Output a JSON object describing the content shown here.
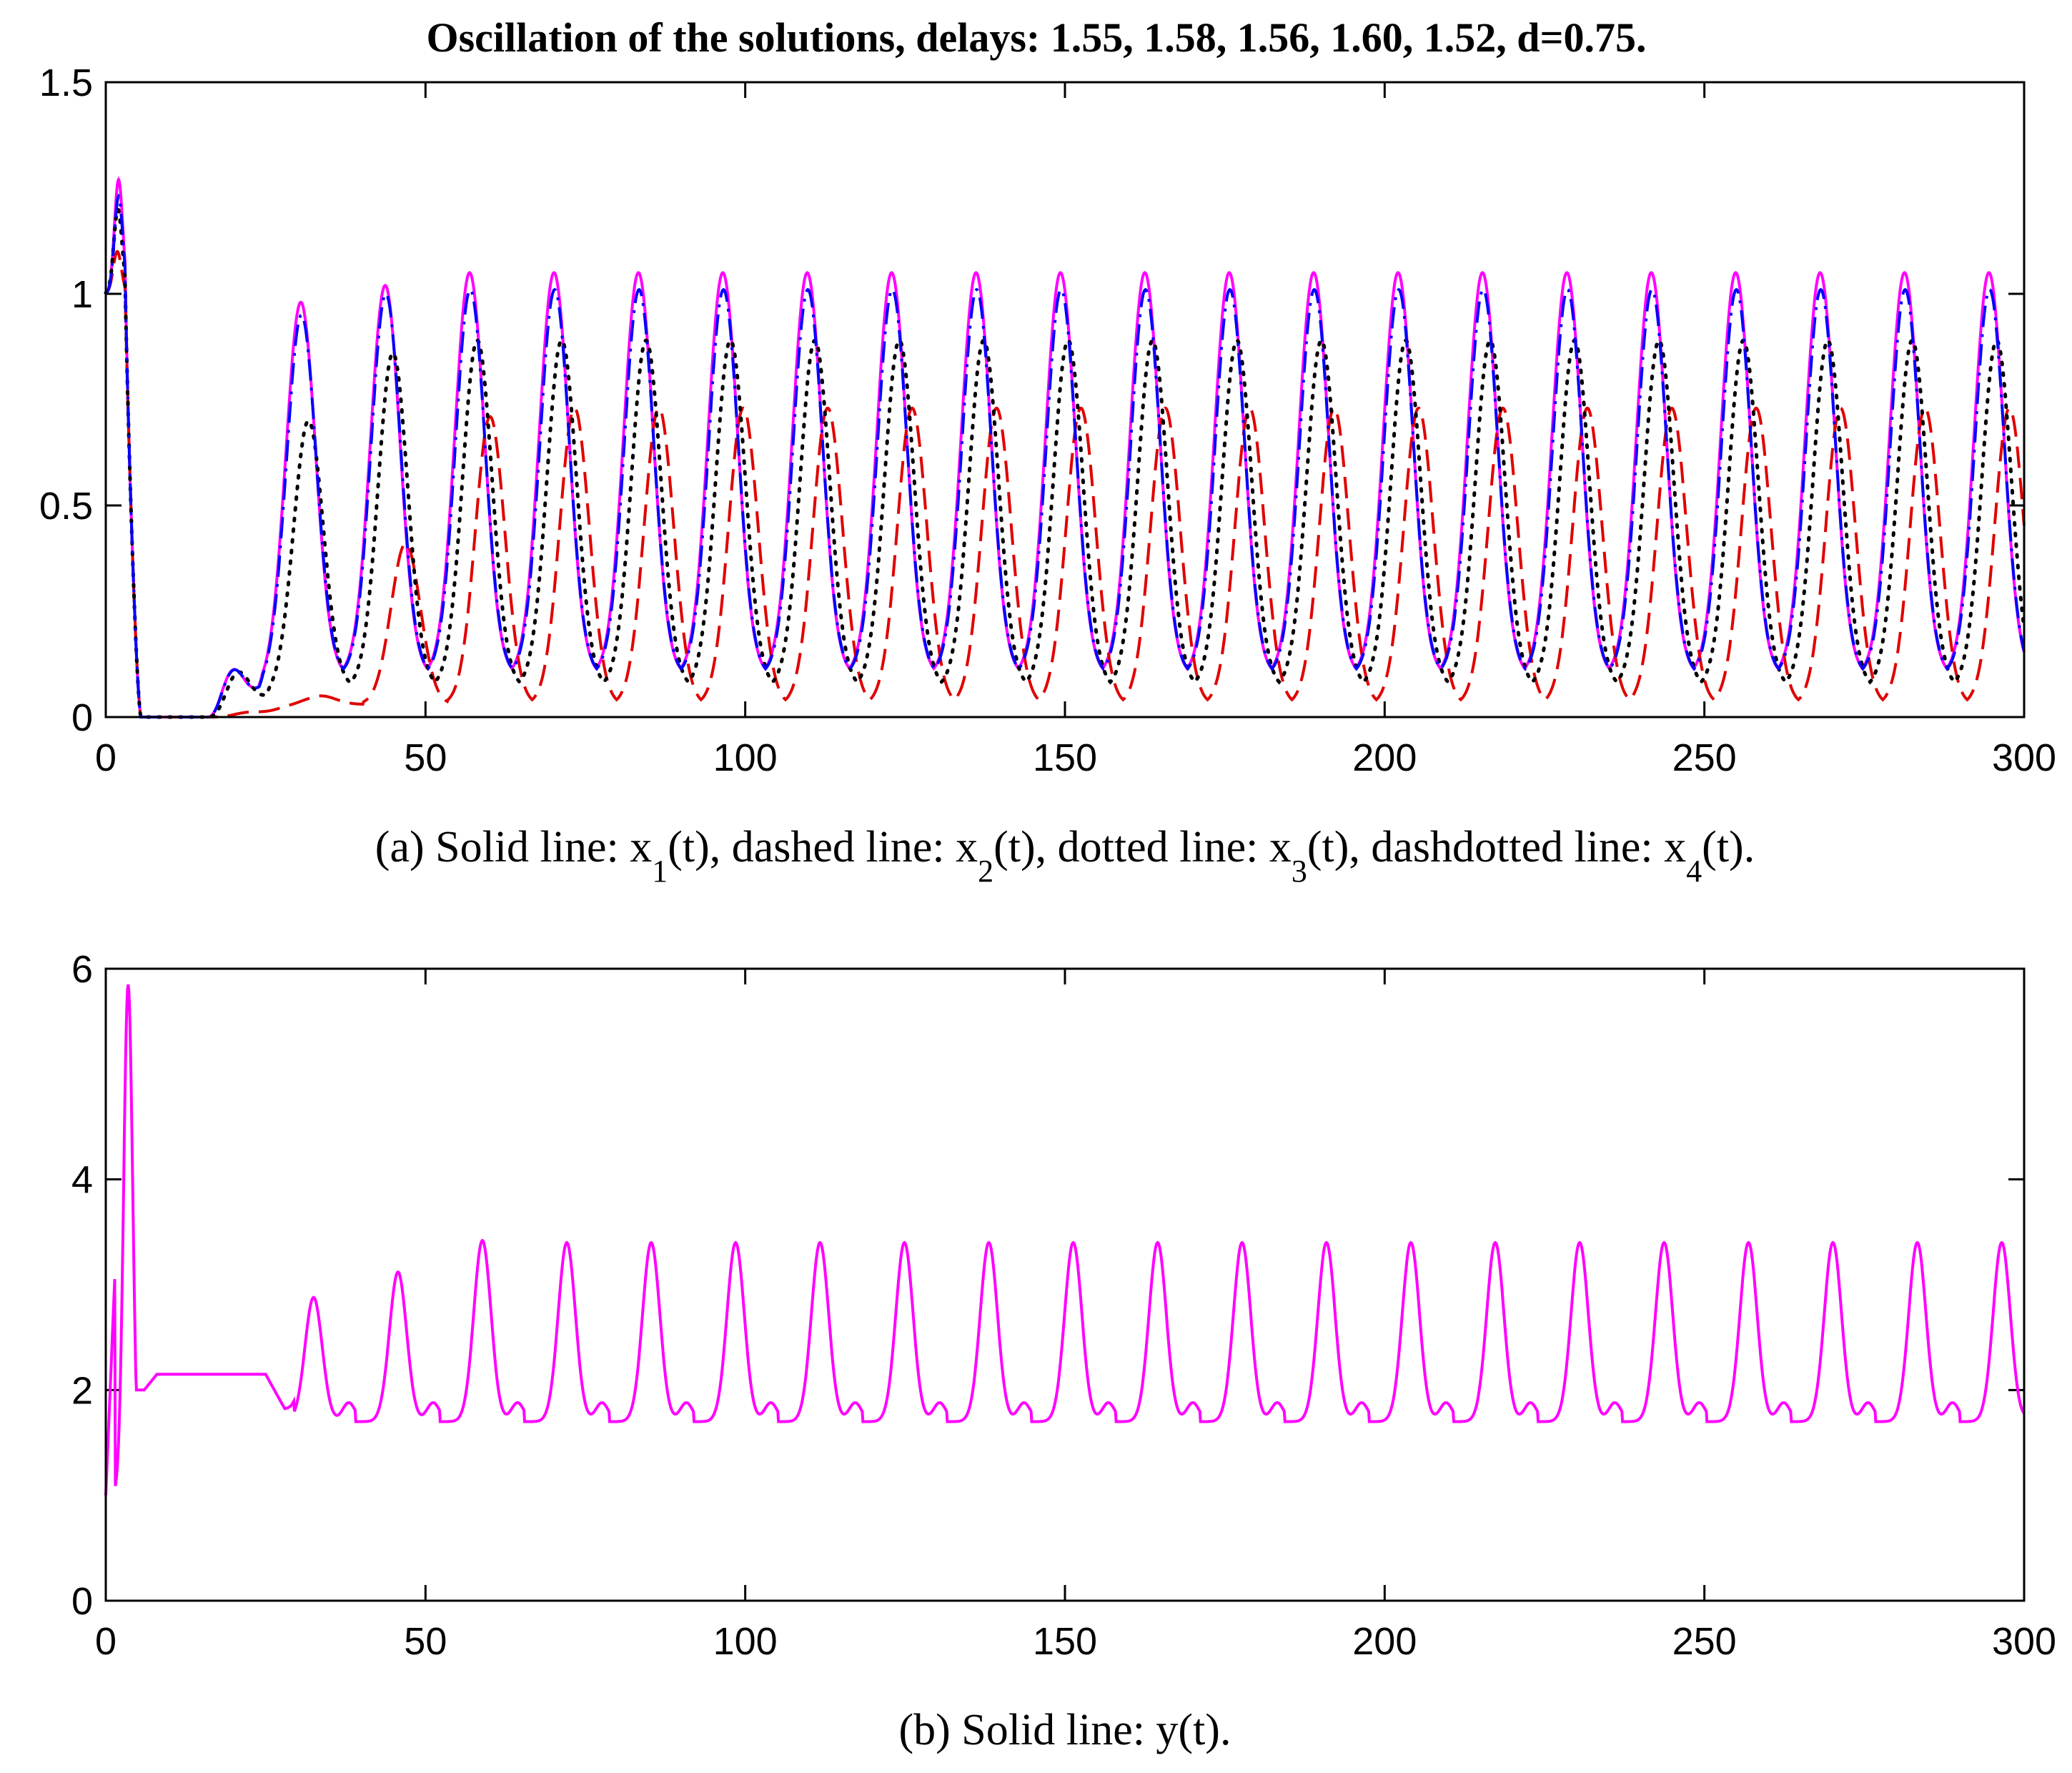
{
  "chart_data": [
    {
      "type": "line",
      "title": "Oscillation of the solutions, delays: 1.55, 1.58, 1.56, 1.60, 1.52, d=0.75.",
      "caption": {
        "prefix": "(a) Solid line: x",
        "sub1": "1",
        "part2": "(t), dashed line: x",
        "sub2": "2",
        "part3": "(t), dotted line: x",
        "sub3": "3",
        "part4": "(t), dashdotted line: x",
        "sub4": "4",
        "suffix": "(t)."
      },
      "xlim": [
        0,
        300
      ],
      "ylim": [
        0,
        1.5
      ],
      "xticks": [
        0,
        50,
        100,
        150,
        200,
        250,
        300
      ],
      "xtick_labels": [
        "0",
        "50",
        "100",
        "150",
        "200",
        "250",
        "300"
      ],
      "yticks": [
        0,
        0.5,
        1,
        1.5
      ],
      "ytick_labels": [
        "0",
        "0.5",
        "1",
        "1.5"
      ],
      "series": [
        {
          "name": "x1(t)",
          "style": "solid",
          "color": "#ff00ff",
          "period": 13.2,
          "first_peak_t": 2.0,
          "first_peak": 1.27,
          "peaks": [
            0.98,
            1.02,
            1.05,
            1.05
          ],
          "trough": 0.1
        },
        {
          "name": "x2(t)",
          "style": "dashed",
          "color": "#e00000",
          "period": 13.2,
          "first_peak_t": 1.8,
          "first_peak": 1.1,
          "peaks": [
            0.05,
            0.41,
            0.71,
            0.73
          ],
          "trough": 0.03
        },
        {
          "name": "x3(t)",
          "style": "dotted",
          "color": "#000000",
          "period": 13.2,
          "first_peak_t": 1.9,
          "first_peak": 1.2,
          "peaks": [
            0.7,
            0.86,
            0.89,
            0.89
          ],
          "trough": 0.07
        },
        {
          "name": "x4(t)",
          "style": "dashdotted",
          "color": "#0000ff",
          "period": 13.2,
          "first_peak_t": 2.0,
          "first_peak": 1.23,
          "peaks": [
            0.95,
            1.0,
            1.01,
            1.01
          ],
          "trough": 0.1
        }
      ]
    },
    {
      "type": "line",
      "caption": "(b) Solid line: y(t).",
      "xlim": [
        0,
        300
      ],
      "ylim": [
        0,
        6
      ],
      "xticks": [
        0,
        50,
        100,
        150,
        200,
        250,
        300
      ],
      "xtick_labels": [
        "0",
        "50",
        "100",
        "150",
        "200",
        "250",
        "300"
      ],
      "yticks": [
        0,
        2,
        4,
        6
      ],
      "ytick_labels": [
        "0",
        "2",
        "4",
        "6"
      ],
      "series": [
        {
          "name": "y(t)",
          "style": "solid",
          "color": "#ff00ff",
          "start": 1.0,
          "spike_t": 3.5,
          "spike": 5.85,
          "plateau": 2.15,
          "period": 13.2,
          "first_peak_t": 32.5,
          "peaks": [
            2.88,
            3.12,
            3.42,
            3.4
          ],
          "baseline": 1.7,
          "secondary_bump": 1.88
        }
      ]
    }
  ]
}
